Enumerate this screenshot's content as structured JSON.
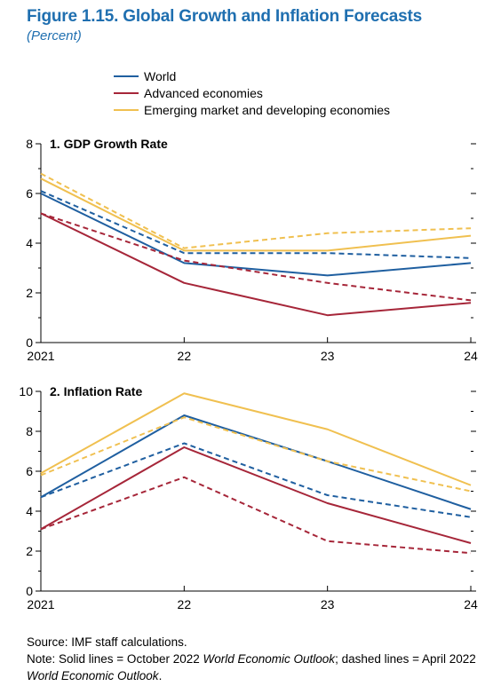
{
  "title": "Figure 1.15.  Global Growth and Inflation Forecasts",
  "subtitle": "(Percent)",
  "legend": [
    {
      "label": "World",
      "color": "#1f5fa0"
    },
    {
      "label": "Advanced economies",
      "color": "#a62639"
    },
    {
      "label": "Emerging market and developing economies",
      "color": "#f0c050"
    }
  ],
  "chart_data": [
    {
      "type": "line",
      "title": "1. GDP Growth Rate",
      "x": [
        "2021",
        "22",
        "23",
        "24"
      ],
      "ylim": [
        0,
        8
      ],
      "yticks": [
        0,
        2,
        4,
        6,
        8
      ],
      "series": [
        {
          "name": "World",
          "style": "solid",
          "values": [
            6.0,
            3.2,
            2.7,
            3.2
          ]
        },
        {
          "name": "World",
          "style": "dashed",
          "values": [
            6.1,
            3.6,
            3.6,
            3.4
          ]
        },
        {
          "name": "Advanced economies",
          "style": "solid",
          "values": [
            5.2,
            2.4,
            1.1,
            1.6
          ]
        },
        {
          "name": "Advanced economies",
          "style": "dashed",
          "values": [
            5.2,
            3.3,
            2.4,
            1.7
          ]
        },
        {
          "name": "Emerging market and developing economies",
          "style": "solid",
          "values": [
            6.6,
            3.7,
            3.7,
            4.3
          ]
        },
        {
          "name": "Emerging market and developing economies",
          "style": "dashed",
          "values": [
            6.8,
            3.8,
            4.4,
            4.6
          ]
        }
      ]
    },
    {
      "type": "line",
      "title": "2. Inflation Rate",
      "x": [
        "2021",
        "22",
        "23",
        "24"
      ],
      "ylim": [
        0,
        10
      ],
      "yticks": [
        0,
        2,
        4,
        6,
        8,
        10
      ],
      "series": [
        {
          "name": "World",
          "style": "solid",
          "values": [
            4.7,
            8.8,
            6.5,
            4.1
          ]
        },
        {
          "name": "World",
          "style": "dashed",
          "values": [
            4.7,
            7.4,
            4.8,
            3.7
          ]
        },
        {
          "name": "Advanced economies",
          "style": "solid",
          "values": [
            3.1,
            7.2,
            4.4,
            2.4
          ]
        },
        {
          "name": "Advanced economies",
          "style": "dashed",
          "values": [
            3.1,
            5.7,
            2.5,
            1.9
          ]
        },
        {
          "name": "Emerging market and developing economies",
          "style": "solid",
          "values": [
            5.9,
            9.9,
            8.1,
            5.3
          ]
        },
        {
          "name": "Emerging market and developing economies",
          "style": "dashed",
          "values": [
            5.8,
            8.7,
            6.5,
            5.0
          ]
        }
      ]
    }
  ],
  "footer": {
    "source": "Source: IMF staff calculations.",
    "note_prefix": "Note: Solid lines = October 2022 ",
    "note_weo1": "World Economic Outlook",
    "note_middle": "; dashed lines = April 2022 ",
    "note_weo2": "World Economic Outlook",
    "note_suffix": "."
  }
}
